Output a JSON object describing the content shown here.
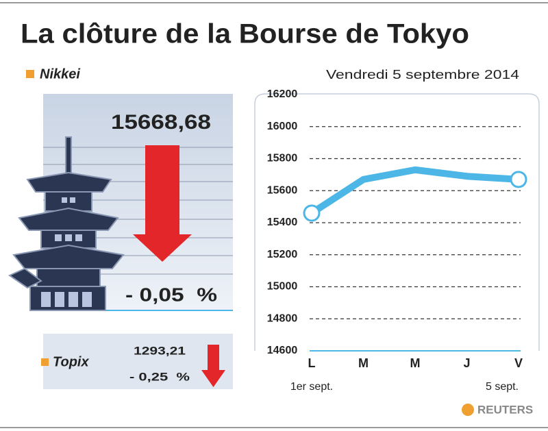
{
  "header": {
    "title": "La clôture de la Bourse de Tokyo"
  },
  "nikkei": {
    "label": "Nikkei",
    "value": "15668,68",
    "change": "- 0,05  %"
  },
  "topix": {
    "label": "Topix",
    "value": "1293,21",
    "change": "- 0,25  %"
  },
  "footer": {
    "source": "REUTERS"
  },
  "chart_data": {
    "type": "line",
    "subtitle": "Vendredi 5 septembre 2014",
    "categories": [
      "L",
      "M",
      "M",
      "J",
      "V"
    ],
    "annotations": [
      "1er sept.",
      "5 sept."
    ],
    "series": [
      {
        "name": "Nikkei",
        "color": "#4cb6e6",
        "values": [
          15460,
          15670,
          15730,
          15690,
          15670
        ]
      }
    ],
    "ylim": [
      14600,
      16200
    ],
    "yticks": [
      14600,
      14800,
      15000,
      15200,
      15400,
      15600,
      15800,
      16000,
      16200
    ],
    "grid": true
  }
}
